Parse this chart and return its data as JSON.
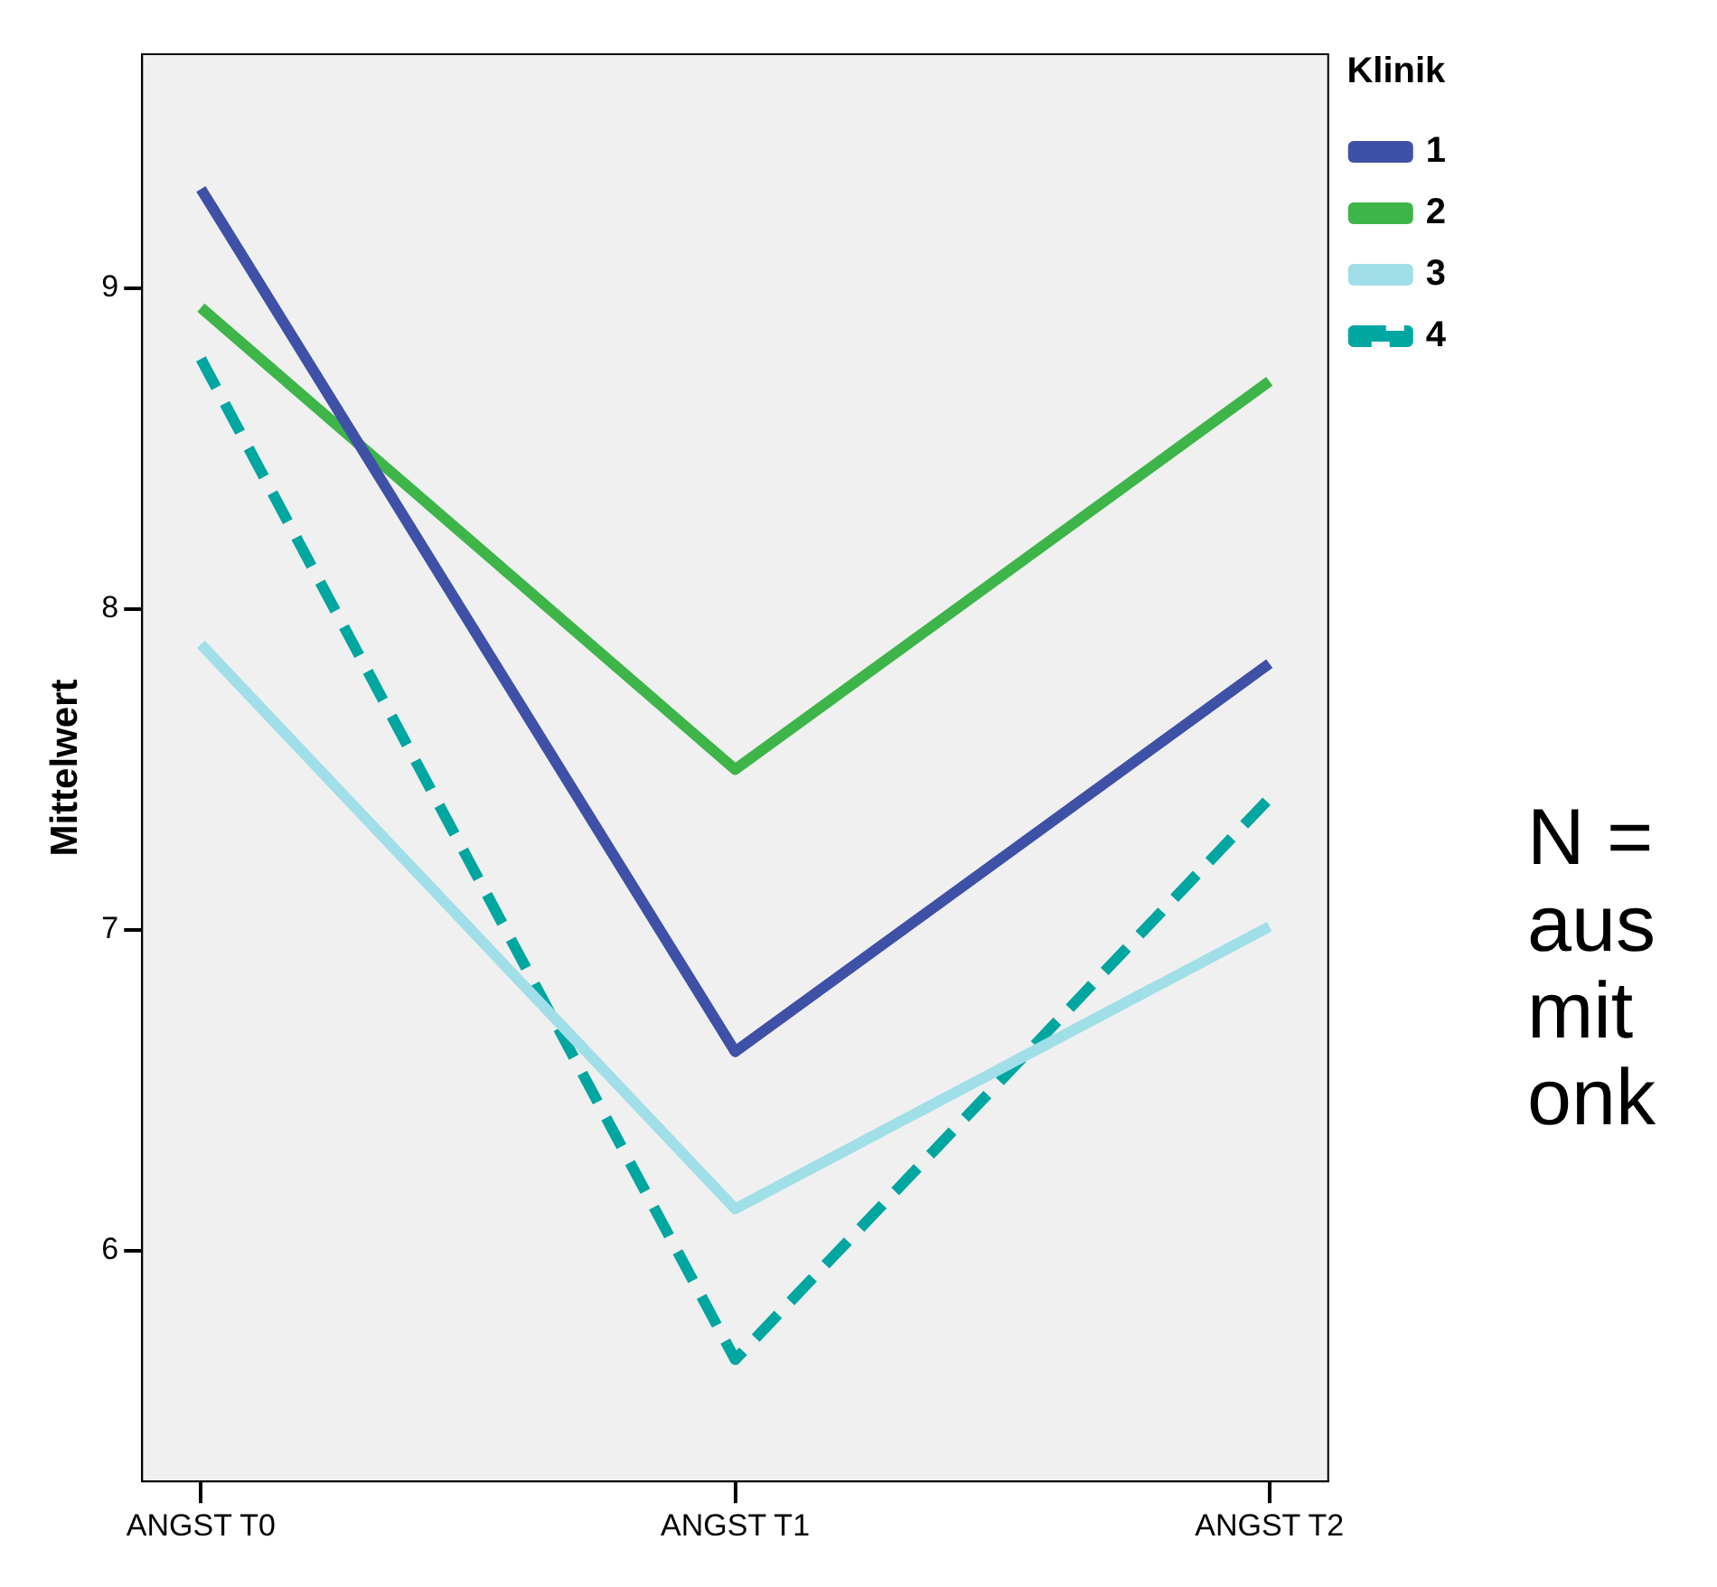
{
  "chart_data": {
    "type": "line",
    "ylabel": "Mittelwert",
    "legend_title": "Klinik",
    "legend": "top right",
    "grid": false,
    "marker": "none",
    "categories": [
      "ANGST T0",
      "ANGST T1",
      "ANGST T2"
    ],
    "ylim": [
      5.28,
      9.73
    ],
    "yticks": [
      6,
      7,
      8,
      9
    ],
    "series": [
      {
        "name": "1",
        "color": "#3f51a6",
        "values": [
          9.31,
          6.62,
          7.83
        ]
      },
      {
        "name": "2",
        "color": "#3db549",
        "values": [
          8.94,
          7.5,
          8.71
        ]
      },
      {
        "name": "3",
        "color": "#a0dfe8",
        "values": [
          7.89,
          6.13,
          7.01
        ]
      },
      {
        "name": "4",
        "color": "#00a6a0",
        "values": [
          8.78,
          5.66,
          7.41
        ],
        "line_style": "dashed"
      }
    ],
    "annotations": [
      "N =",
      "aus",
      "mit",
      "onk"
    ]
  }
}
